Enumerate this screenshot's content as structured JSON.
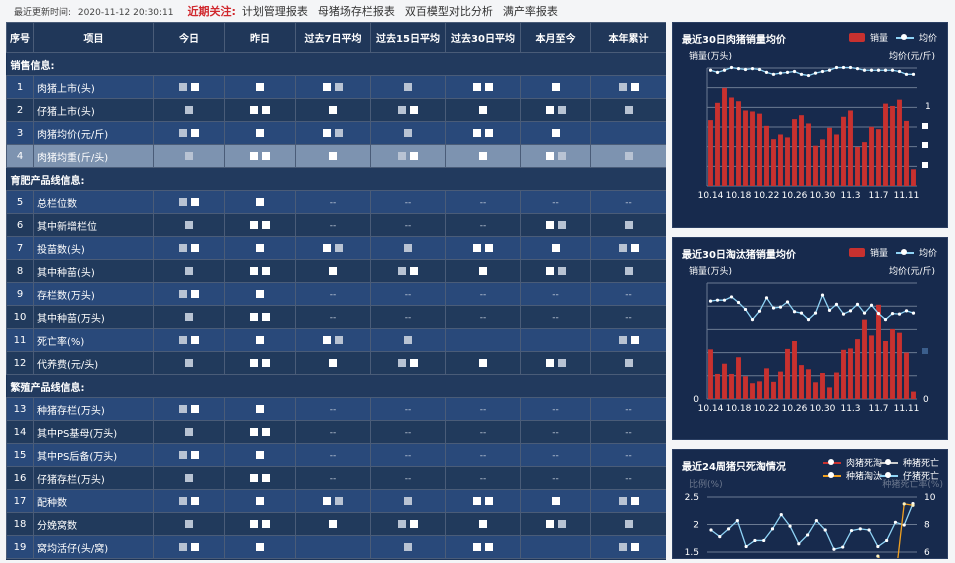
{
  "topbar": {
    "update_label": "最近更新时间:",
    "update_time": "2020-11-12 20:30:11",
    "focus_label": "近期关注:",
    "links": [
      "计划管理报表",
      "母猪场存栏报表",
      "双百模型对比分析",
      "满产率报表"
    ]
  },
  "table": {
    "headers": [
      "序号",
      "项目",
      "今日",
      "昨日",
      "过去7日平均",
      "过去15日平均",
      "过去30日平均",
      "本月至今",
      "本年累计"
    ],
    "sections": [
      {
        "title": "销售信息:",
        "rows": [
          {
            "no": "1",
            "item": "肉猪上市(头)",
            "values": [
              "",
              "",
              "",
              "",
              "",
              "",
              ""
            ]
          },
          {
            "no": "2",
            "item": "仔猪上市(头)",
            "values": [
              "",
              "",
              "",
              "",
              "",
              "",
              ""
            ]
          },
          {
            "no": "3",
            "item": "肉猪均价(元/斤)",
            "values": [
              "",
              "",
              "",
              "",
              "",
              "",
              null
            ]
          },
          {
            "no": "4",
            "item": "肉猪均重(斤/头)",
            "values": [
              "",
              "",
              "",
              "",
              "",
              "",
              ""
            ],
            "selected": true
          }
        ]
      },
      {
        "title": "育肥产品线信息:",
        "rows": [
          {
            "no": "5",
            "item": "总栏位数",
            "values": [
              "",
              "",
              "--",
              "--",
              "--",
              "--",
              "--"
            ]
          },
          {
            "no": "6",
            "item": "其中新增栏位",
            "values": [
              "",
              "",
              "--",
              "--",
              "--",
              "",
              ""
            ]
          },
          {
            "no": "7",
            "item": "投苗数(头)",
            "values": [
              "",
              "",
              "",
              "",
              "",
              "",
              ""
            ]
          },
          {
            "no": "8",
            "item": "其中种苗(头)",
            "values": [
              "",
              "",
              "",
              "",
              "",
              "",
              ""
            ]
          },
          {
            "no": "9",
            "item": "存栏数(万头)",
            "values": [
              "",
              "",
              "--",
              "--",
              "--",
              "--",
              "--"
            ]
          },
          {
            "no": "10",
            "item": "其中种苗(万头)",
            "values": [
              "",
              "",
              "--",
              "--",
              "--",
              "--",
              "--"
            ]
          },
          {
            "no": "11",
            "item": "死亡率(%)",
            "values": [
              "",
              "",
              "",
              "",
              null,
              null,
              ""
            ]
          },
          {
            "no": "12",
            "item": "代养费(元/头)",
            "values": [
              "",
              "",
              "",
              "",
              "",
              "",
              ""
            ]
          }
        ]
      },
      {
        "title": "繁殖产品线信息:",
        "rows": [
          {
            "no": "13",
            "item": "种猪存栏(万头)",
            "values": [
              "",
              "",
              "--",
              "--",
              "--",
              "--",
              "--"
            ]
          },
          {
            "no": "14",
            "item": "其中PS基母(万头)",
            "values": [
              "",
              "",
              "--",
              "--",
              "--",
              "--",
              "--"
            ]
          },
          {
            "no": "15",
            "item": "其中PS后备(万头)",
            "values": [
              "",
              "",
              "--",
              "--",
              "--",
              "--",
              "--"
            ]
          },
          {
            "no": "16",
            "item": "仔猪存栏(万头)",
            "values": [
              "",
              "",
              "--",
              "--",
              "--",
              "--",
              "--"
            ]
          },
          {
            "no": "17",
            "item": "配种数",
            "values": [
              "",
              "",
              "",
              "",
              "",
              "",
              ""
            ]
          },
          {
            "no": "18",
            "item": "分娩窝数",
            "values": [
              "",
              "",
              "",
              "",
              "",
              "",
              ""
            ]
          },
          {
            "no": "19",
            "item": "窝均活仔(头/窝)",
            "values": [
              "",
              "",
              null,
              "",
              "",
              null,
              ""
            ]
          }
        ]
      }
    ]
  },
  "chart_data": [
    {
      "type": "bar",
      "title": "最近30日肉猪销量均价",
      "ylabel": "销量(万头)",
      "y2label": "均价(元/斤)",
      "legend": [
        "销量",
        "均价"
      ],
      "legend_position": "top-right",
      "categories": [
        "10.14",
        "10.15",
        "10.16",
        "10.17",
        "10.18",
        "10.19",
        "10.20",
        "10.21",
        "10.22",
        "10.23",
        "10.24",
        "10.25",
        "10.26",
        "10.27",
        "10.28",
        "10.29",
        "10.30",
        "10.31",
        "11.1",
        "11.2",
        "11.3",
        "11.4",
        "11.5",
        "11.6",
        "11.7",
        "11.8",
        "11.9",
        "11.10",
        "11.11",
        "11.12"
      ],
      "xtick_labels": [
        "10.14",
        "10.18",
        "10.22",
        "10.26",
        "10.30",
        "11.3",
        "11.7",
        "11.11"
      ],
      "ylim": [
        0,
        6
      ],
      "y2lim": [
        0,
        1.25
      ],
      "y2tick_labels": [
        "1"
      ],
      "grid": true,
      "colors": {
        "bar": "#c8312f",
        "line": "#8fd3f5"
      },
      "series": [
        {
          "name": "销量",
          "type": "bar",
          "values": [
            3.35,
            4.23,
            4.99,
            4.5,
            4.31,
            3.84,
            3.79,
            3.68,
            3.06,
            2.38,
            2.62,
            2.47,
            3.4,
            3.6,
            3.18,
            2.05,
            2.37,
            2.96,
            2.62,
            3.52,
            3.84,
            1.99,
            2.23,
            3.01,
            2.89,
            4.19,
            4.07,
            4.39,
            3.31,
            0.85
          ]
        },
        {
          "name": "均价",
          "type": "line",
          "axis": "right",
          "values": [
            1.226,
            1.204,
            1.226,
            1.255,
            1.243,
            1.234,
            1.243,
            1.234,
            1.204,
            1.183,
            1.196,
            1.204,
            1.213,
            1.183,
            1.17,
            1.196,
            1.213,
            1.226,
            1.255,
            1.255,
            1.255,
            1.243,
            1.226,
            1.226,
            1.226,
            1.226,
            1.226,
            1.213,
            1.183,
            1.183
          ]
        }
      ]
    },
    {
      "type": "bar",
      "title": "最近30日淘汰猪销量均价",
      "ylabel": "销量(万头)",
      "y2label": "均价(元/斤)",
      "legend": [
        "销量",
        "均价"
      ],
      "legend_position": "top-right",
      "categories": [
        "10.14",
        "10.15",
        "10.16",
        "10.17",
        "10.18",
        "10.19",
        "10.20",
        "10.21",
        "10.22",
        "10.23",
        "10.24",
        "10.25",
        "10.26",
        "10.27",
        "10.28",
        "10.29",
        "10.30",
        "10.31",
        "11.1",
        "11.2",
        "11.3",
        "11.4",
        "11.5",
        "11.6",
        "11.7",
        "11.8",
        "11.9",
        "11.10",
        "11.11",
        "11.12"
      ],
      "xtick_labels": [
        "10.14",
        "10.18",
        "10.22",
        "10.26",
        "10.30",
        "11.3",
        "11.7",
        "11.11"
      ],
      "ylim": [
        0,
        2.5
      ],
      "ytick_labels": [
        "0"
      ],
      "y2lim": [
        0,
        2.5
      ],
      "y2tick_labels": [
        "0"
      ],
      "grid": true,
      "colors": {
        "bar": "#c8312f",
        "line": "#8fd3f5"
      },
      "series": [
        {
          "name": "销量",
          "type": "bar",
          "values": [
            1.07,
            0.54,
            0.76,
            0.54,
            0.9,
            0.49,
            0.34,
            0.38,
            0.66,
            0.37,
            0.59,
            1.08,
            1.25,
            0.73,
            0.64,
            0.36,
            0.56,
            0.25,
            0.57,
            1.06,
            1.09,
            1.29,
            1.71,
            1.37,
            2.03,
            1.25,
            1.51,
            1.43,
            1.0,
            0.16
          ]
        },
        {
          "name": "均价",
          "type": "line",
          "axis": "right",
          "values": [
            2.11,
            2.13,
            2.13,
            2.2,
            2.08,
            1.93,
            1.71,
            1.89,
            2.18,
            1.96,
            1.98,
            2.09,
            1.88,
            1.85,
            1.71,
            1.85,
            2.24,
            1.91,
            2.04,
            1.83,
            1.9,
            2.04,
            1.85,
            2.02,
            1.84,
            1.71,
            1.84,
            1.83,
            1.9,
            1.85
          ]
        }
      ]
    },
    {
      "type": "line",
      "title": "最近24周猪只死淘情况",
      "ylabel": "比例(%)",
      "y2label": "种猪死亡率(%)",
      "legend": [
        "肉猪死淘",
        "种猪死亡",
        "种猪淘汰",
        "仔猪死亡"
      ],
      "legend_position": "top-right",
      "ylim": [
        1.5,
        2.5
      ],
      "ytick_labels": [
        "2.5",
        "2",
        "1.5"
      ],
      "y2lim": [
        6,
        10
      ],
      "y2tick_labels": [
        "10",
        "8",
        "6"
      ],
      "grid": true,
      "colors": {
        "肉猪死淘": "#c8312f",
        "种猪死亡": "#ffffff",
        "种猪淘汰": "#f0a020",
        "仔猪死亡": "#8fd3f5"
      },
      "series": [
        {
          "name": "仔猪死亡",
          "axis": "left",
          "values": [
            1.9,
            1.78,
            1.92,
            2.07,
            1.6,
            1.71,
            1.71,
            1.92,
            2.18,
            1.97,
            1.65,
            1.81,
            2.07,
            1.9,
            1.55,
            1.59,
            1.89,
            1.92,
            1.9,
            1.6,
            1.71,
            2.04,
            1.99,
            2.38
          ]
        },
        {
          "name": "种猪淘汰",
          "axis": "right",
          "values": [
            null,
            null,
            null,
            null,
            null,
            null,
            null,
            null,
            null,
            null,
            null,
            null,
            null,
            null,
            null,
            null,
            null,
            null,
            null,
            5.7,
            null,
            4.0,
            9.5,
            9.4
          ]
        }
      ]
    }
  ]
}
